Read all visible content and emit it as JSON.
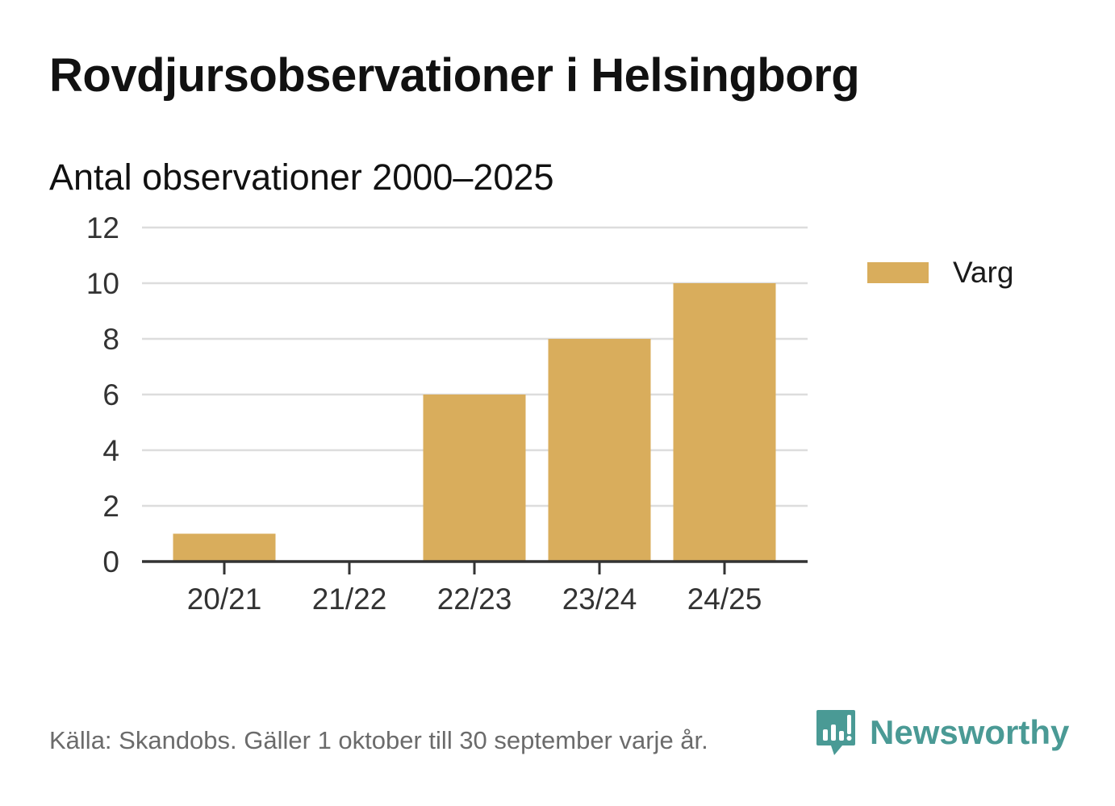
{
  "title": "Rovdjursobservationer i Helsingborg",
  "subtitle": "Antal observationer 2000–2025",
  "footer": "Källa: Skandobs. Gäller 1 oktober till 30 september varje år.",
  "brand": {
    "name": "Newsworthy",
    "icon": "newsworthy-logo-icon",
    "color": "#4a9a95"
  },
  "colors": {
    "bar": "#d9ad5c",
    "grid": "#dddddd",
    "axis": "#333333",
    "tick_text": "#333333"
  },
  "chart_data": {
    "type": "bar",
    "title": "Antal observationer 2000–2025",
    "xlabel": "",
    "ylabel": "",
    "categories": [
      "20/21",
      "21/22",
      "22/23",
      "23/24",
      "24/25"
    ],
    "series": [
      {
        "name": "Varg",
        "color": "#d9ad5c",
        "values": [
          1,
          0,
          6,
          8,
          10
        ]
      }
    ],
    "ylim": [
      0,
      12
    ],
    "yticks": [
      "0",
      "2",
      "4",
      "6",
      "8",
      "10",
      "12"
    ],
    "grid": true,
    "legend": "right"
  }
}
